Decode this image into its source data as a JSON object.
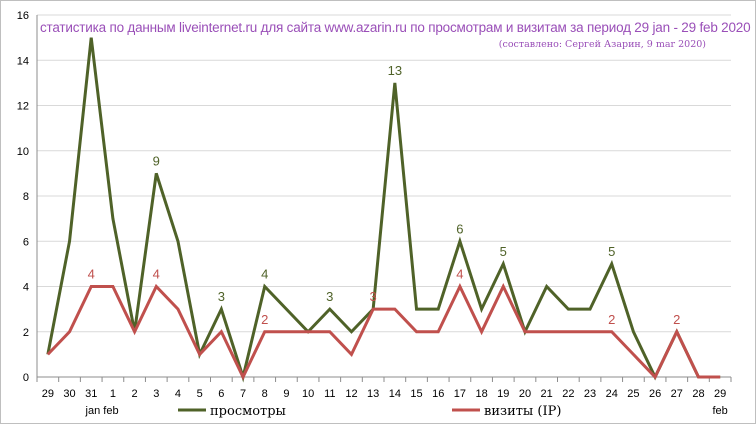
{
  "chart_data": {
    "type": "line",
    "title": "статистика по данным liveinternet.ru для сайта www.azarin.ru по просмотрам и визитам за период 29 jan - 29 feb 2020",
    "subtitle": "(составлено: Сергей Азарин, 9 mar 2020)",
    "x": [
      "29",
      "30",
      "31",
      "1",
      "2",
      "3",
      "4",
      "5",
      "6",
      "7",
      "8",
      "9",
      "10",
      "11",
      "12",
      "13",
      "14",
      "15",
      "16",
      "17",
      "18",
      "19",
      "20",
      "21",
      "22",
      "23",
      "24",
      "25",
      "26",
      "27",
      "28",
      "29"
    ],
    "month_labels": [
      {
        "text": "jan feb",
        "between": [
          2,
          3
        ]
      },
      {
        "text": "feb",
        "between": [
          31,
          31
        ]
      }
    ],
    "ylim": [
      0,
      16
    ],
    "yticks": [
      0,
      2,
      4,
      6,
      8,
      10,
      12,
      14,
      16
    ],
    "grid": true,
    "legend_position": "bottom",
    "series": [
      {
        "name": "просмотры",
        "color": "#4f6228",
        "values": [
          1,
          6,
          15,
          7,
          2,
          9,
          6,
          1,
          3,
          0,
          4,
          3,
          2,
          3,
          2,
          3,
          13,
          3,
          3,
          6,
          3,
          5,
          2,
          4,
          3,
          3,
          5,
          2,
          0,
          2,
          0,
          0
        ],
        "labels": [
          {
            "index": 5,
            "text": "9"
          },
          {
            "index": 8,
            "text": "3"
          },
          {
            "index": 10,
            "text": "4"
          },
          {
            "index": 13,
            "text": "3"
          },
          {
            "index": 16,
            "text": "13"
          },
          {
            "index": 19,
            "text": "6"
          },
          {
            "index": 21,
            "text": "5"
          },
          {
            "index": 26,
            "text": "5"
          }
        ]
      },
      {
        "name": "визиты (IP)",
        "color": "#c0504d",
        "values": [
          1,
          2,
          4,
          4,
          2,
          4,
          3,
          1,
          2,
          0,
          2,
          2,
          2,
          2,
          1,
          3,
          3,
          2,
          2,
          4,
          2,
          4,
          2,
          2,
          2,
          2,
          2,
          1,
          0,
          2,
          0,
          0
        ],
        "labels": [
          {
            "index": 2,
            "text": "4"
          },
          {
            "index": 5,
            "text": "4"
          },
          {
            "index": 10,
            "text": "2"
          },
          {
            "index": 15,
            "text": "3"
          },
          {
            "index": 19,
            "text": "4"
          },
          {
            "index": 26,
            "text": "2"
          },
          {
            "index": 29,
            "text": "2"
          }
        ]
      }
    ]
  }
}
